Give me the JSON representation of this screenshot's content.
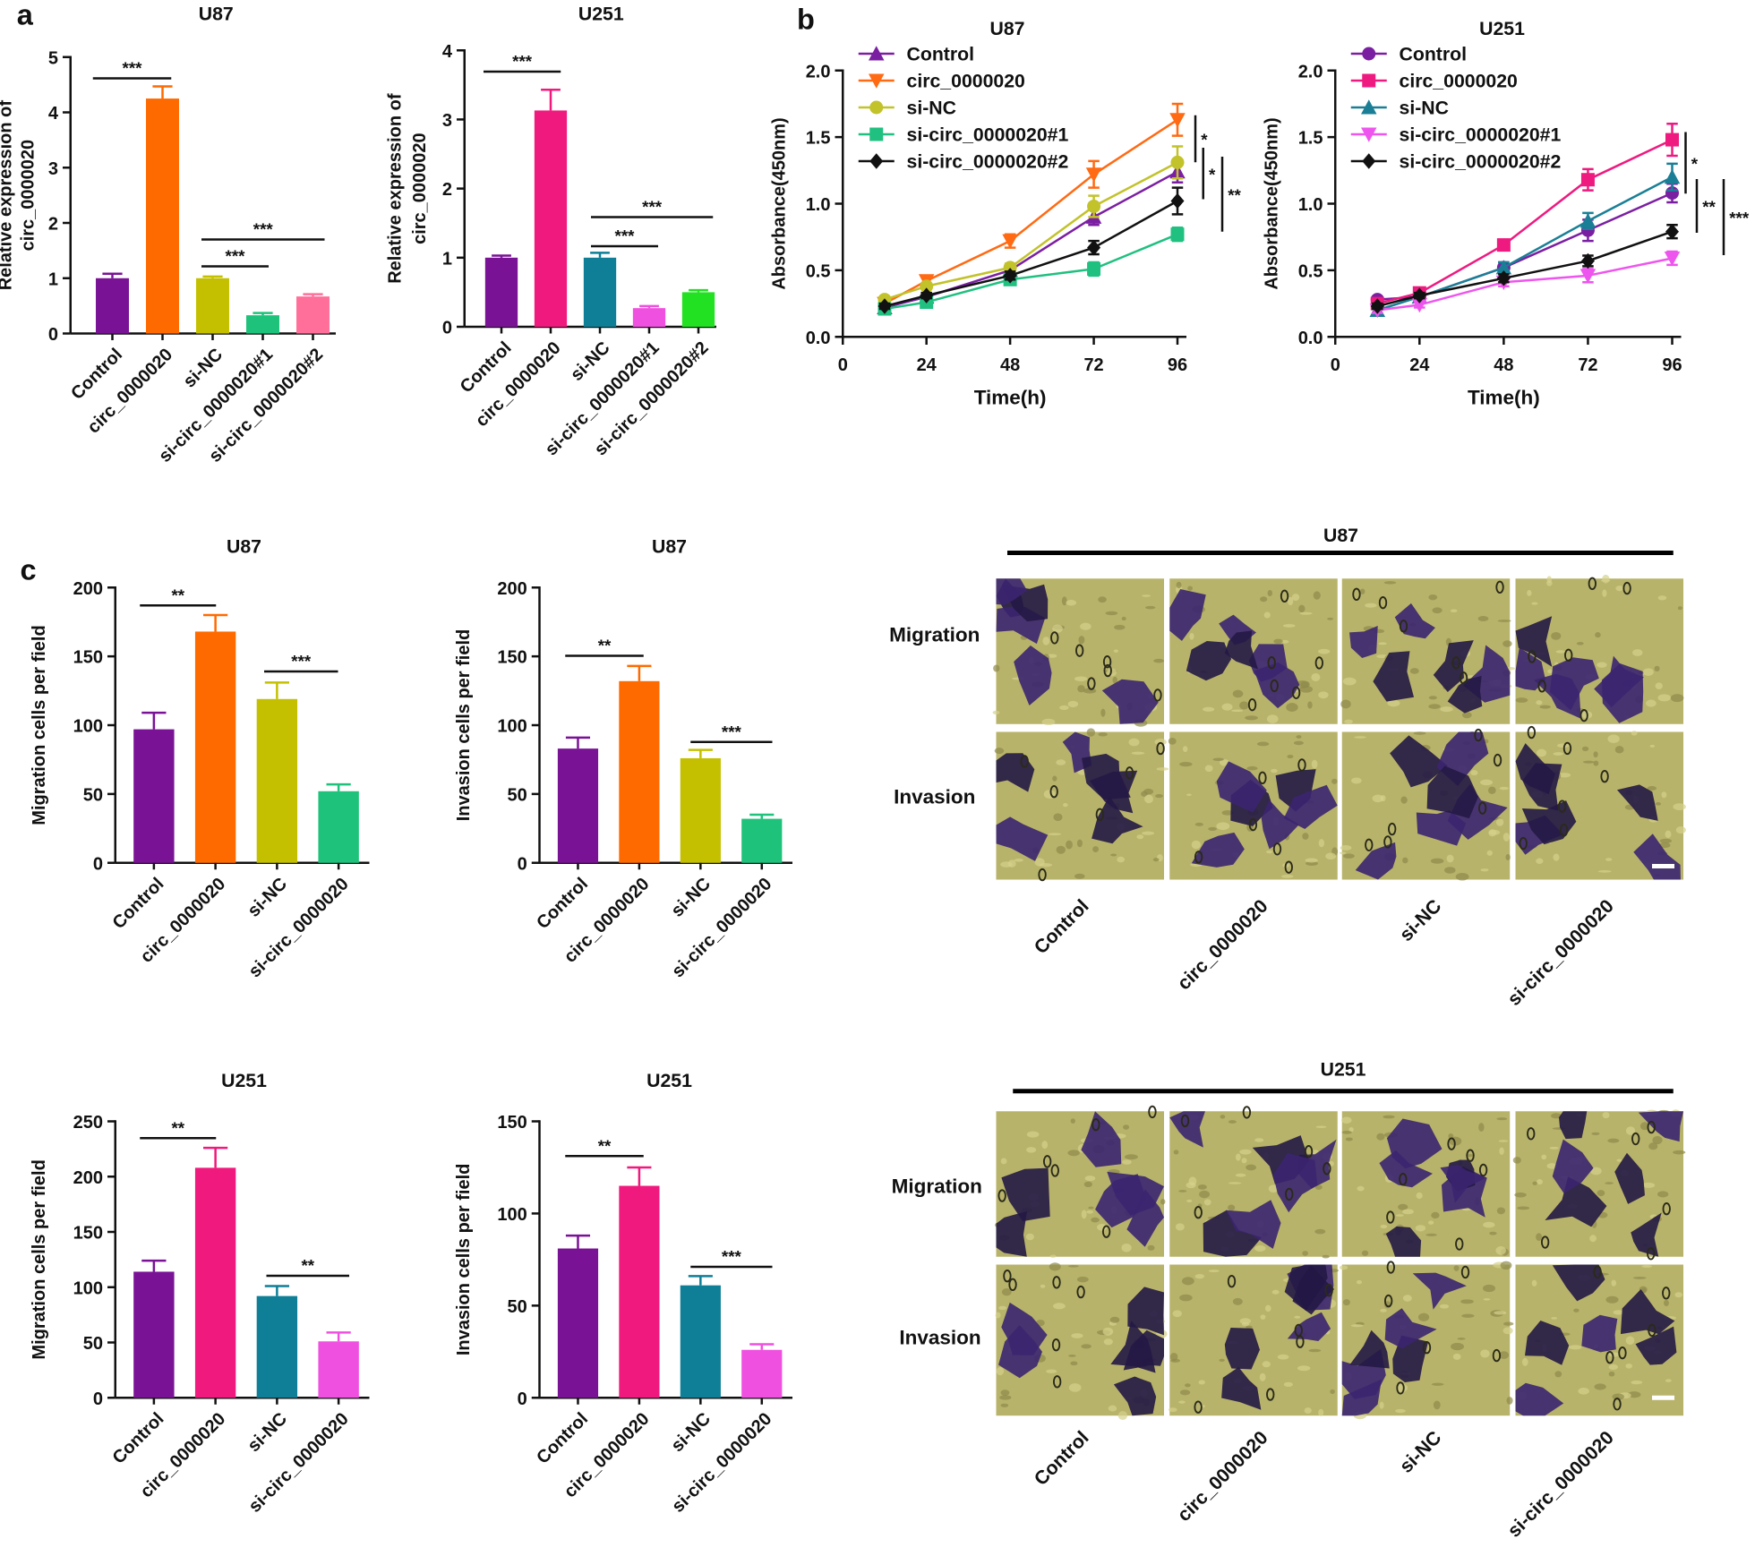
{
  "panel_labels": [
    "a",
    "b",
    "c"
  ],
  "chart_data": [
    {
      "type": "bar",
      "title": "U87",
      "ylabel": [
        "Relative expression of",
        "circ_0000020"
      ],
      "categories": [
        "Control",
        "circ_0000020",
        "si-NC",
        "si-circ_0000020#1",
        "si-circ_0000020#2"
      ],
      "values": [
        1.0,
        4.25,
        1.0,
        0.33,
        0.67
      ],
      "errors": [
        0.08,
        0.22,
        0.03,
        0.04,
        0.04
      ],
      "colors": [
        "#7a1296",
        "#ff6a00",
        "#c4c000",
        "#1ec27a",
        "#ff6f9a"
      ],
      "ylim": [
        0,
        5
      ],
      "yticks": [
        0,
        1,
        2,
        3,
        4,
        5
      ],
      "annotations": [
        "***",
        "***",
        "***"
      ]
    },
    {
      "type": "bar",
      "title": "U251",
      "ylabel": [
        "Relative expression of",
        "circ_0000020"
      ],
      "categories": [
        "Control",
        "circ_0000020",
        "si-NC",
        "si-circ_0000020#1",
        "si-circ_0000020#2"
      ],
      "values": [
        1.0,
        3.13,
        1.0,
        0.27,
        0.5
      ],
      "errors": [
        0.03,
        0.3,
        0.07,
        0.03,
        0.03
      ],
      "colors": [
        "#7a1296",
        "#f0197d",
        "#0e7f96",
        "#f050e0",
        "#22e022"
      ],
      "ylim": [
        0,
        4
      ],
      "yticks": [
        0,
        1,
        2,
        3,
        4
      ],
      "annotations": [
        "***",
        "***",
        "***"
      ]
    },
    {
      "type": "line",
      "title": "U87",
      "xlabel": "Time(h)",
      "ylabel": "Absorbance(450nm)",
      "x": [
        12,
        24,
        48,
        72,
        96
      ],
      "xlim": [
        0,
        96
      ],
      "xticks": [
        0,
        24,
        48,
        72,
        96
      ],
      "ylim": [
        0,
        2.0
      ],
      "yticks": [
        {
          "value": 0,
          "label": "0.0"
        },
        {
          "value": 0.5,
          "label": "0.5"
        },
        {
          "value": 1.0,
          "label": "1.0"
        },
        {
          "value": 1.5,
          "label": "1.5"
        },
        {
          "value": 2.0,
          "label": "2.0"
        }
      ],
      "series": [
        {
          "name": "Control",
          "color": "#7b1fa2",
          "marker": "triangle",
          "values": [
            0.22,
            0.3,
            0.5,
            0.9,
            1.24
          ],
          "errors": [
            0.02,
            0.02,
            0.03,
            0.06,
            0.08
          ]
        },
        {
          "name": "circ_0000020",
          "color": "#ff6a13",
          "marker": "triangle-down",
          "values": [
            0.25,
            0.42,
            0.72,
            1.22,
            1.63
          ],
          "errors": [
            0.02,
            0.03,
            0.05,
            0.1,
            0.12
          ]
        },
        {
          "name": "si-NC",
          "color": "#c2c22a",
          "marker": "circle",
          "values": [
            0.28,
            0.38,
            0.52,
            0.98,
            1.31
          ],
          "errors": [
            0.02,
            0.02,
            0.03,
            0.08,
            0.12
          ]
        },
        {
          "name": "si-circ_0000020#1",
          "color": "#20c080",
          "marker": "square",
          "values": [
            0.21,
            0.26,
            0.43,
            0.51,
            0.77
          ],
          "errors": [
            0.02,
            0.02,
            0.04,
            0.05,
            0.05
          ]
        },
        {
          "name": "si-circ_0000020#2",
          "color": "#111111",
          "marker": "diamond",
          "values": [
            0.23,
            0.31,
            0.46,
            0.67,
            1.02
          ],
          "errors": [
            0.02,
            0.02,
            0.03,
            0.05,
            0.1
          ]
        }
      ],
      "annotations": [
        "*",
        "*",
        "**"
      ]
    },
    {
      "type": "line",
      "title": "U251",
      "xlabel": "Time(h)",
      "ylabel": "Absorbance(450nm)",
      "x": [
        12,
        24,
        48,
        72,
        96
      ],
      "xlim": [
        0,
        96
      ],
      "xticks": [
        0,
        24,
        48,
        72,
        96
      ],
      "ylim": [
        0,
        2.0
      ],
      "yticks": [
        {
          "value": 0,
          "label": "0.0"
        },
        {
          "value": 0.5,
          "label": "0.5"
        },
        {
          "value": 1.0,
          "label": "1.0"
        },
        {
          "value": 1.5,
          "label": "1.5"
        },
        {
          "value": 2.0,
          "label": "2.0"
        }
      ],
      "series": [
        {
          "name": "Control",
          "color": "#7b1fa2",
          "marker": "circle",
          "values": [
            0.28,
            0.3,
            0.52,
            0.8,
            1.08
          ],
          "errors": [
            0.02,
            0.02,
            0.04,
            0.08,
            0.07
          ]
        },
        {
          "name": "circ_0000020",
          "color": "#ee1a80",
          "marker": "square",
          "values": [
            0.25,
            0.33,
            0.69,
            1.18,
            1.48
          ],
          "errors": [
            0.02,
            0.03,
            0.04,
            0.08,
            0.12
          ]
        },
        {
          "name": "si-NC",
          "color": "#1a7f96",
          "marker": "triangle",
          "values": [
            0.2,
            0.3,
            0.52,
            0.87,
            1.2
          ],
          "errors": [
            0.02,
            0.02,
            0.04,
            0.06,
            0.1
          ]
        },
        {
          "name": "si-circ_0000020#1",
          "color": "#ee55ee",
          "marker": "triangle-down",
          "values": [
            0.2,
            0.24,
            0.41,
            0.46,
            0.59
          ],
          "errors": [
            0.02,
            0.02,
            0.03,
            0.05,
            0.05
          ]
        },
        {
          "name": "si-circ_0000020#2",
          "color": "#111111",
          "marker": "diamond",
          "values": [
            0.23,
            0.31,
            0.44,
            0.57,
            0.79
          ],
          "errors": [
            0.02,
            0.02,
            0.03,
            0.04,
            0.05
          ]
        }
      ],
      "annotations": [
        "*",
        "**",
        "***"
      ]
    },
    {
      "type": "bar",
      "title": "U87",
      "ylabel": [
        "Migration cells per field"
      ],
      "categories": [
        "Control",
        "circ_0000020",
        "si-NC",
        "si-circ_0000020"
      ],
      "values": [
        97,
        168,
        119,
        52
      ],
      "errors": [
        12,
        12,
        12,
        5
      ],
      "colors": [
        "#7a1296",
        "#ff6a00",
        "#c4c000",
        "#1ec27a"
      ],
      "ylim": [
        0,
        200
      ],
      "yticks": [
        0,
        50,
        100,
        150,
        200
      ],
      "annotations": [
        "**",
        "***"
      ]
    },
    {
      "type": "bar",
      "title": "U87",
      "ylabel": [
        "Invasion cells per field"
      ],
      "categories": [
        "Control",
        "circ_0000020",
        "si-NC",
        "si-circ_0000020"
      ],
      "values": [
        83,
        132,
        76,
        32
      ],
      "errors": [
        8,
        11,
        6,
        3
      ],
      "colors": [
        "#7a1296",
        "#ff6a00",
        "#c4c000",
        "#1ec27a"
      ],
      "ylim": [
        0,
        200
      ],
      "yticks": [
        0,
        50,
        100,
        150,
        200
      ],
      "annotations": [
        "**",
        "***"
      ]
    },
    {
      "type": "bar",
      "title": "U251",
      "ylabel": [
        "Migration cells per field"
      ],
      "categories": [
        "Control",
        "circ_0000020",
        "si-NC",
        "si-circ_0000020"
      ],
      "values": [
        114,
        208,
        92,
        51
      ],
      "errors": [
        10,
        18,
        9,
        8
      ],
      "colors": [
        "#7a1296",
        "#f0197d",
        "#0e7f96",
        "#f050e0"
      ],
      "ylim": [
        0,
        250
      ],
      "yticks": [
        0,
        50,
        100,
        150,
        200,
        250
      ],
      "annotations": [
        "**",
        "**"
      ]
    },
    {
      "type": "bar",
      "title": "U251",
      "ylabel": [
        "Invasion cells per field"
      ],
      "categories": [
        "Control",
        "circ_0000020",
        "si-NC",
        "si-circ_0000020"
      ],
      "values": [
        81,
        115,
        61,
        26
      ],
      "errors": [
        7,
        10,
        5,
        3
      ],
      "colors": [
        "#7a1296",
        "#f0197d",
        "#0e7f96",
        "#f050e0"
      ],
      "ylim": [
        0,
        150
      ],
      "yticks": [
        0,
        50,
        100,
        150
      ],
      "annotations": [
        "**",
        "***"
      ]
    }
  ],
  "image_panels": [
    {
      "title": "U87",
      "rows": [
        "Migration",
        "Invasion"
      ],
      "columns": [
        "Control",
        "circ_0000020",
        "si-NC",
        "si-circ_0000020"
      ]
    },
    {
      "title": "U251",
      "rows": [
        "Migration",
        "Invasion"
      ],
      "columns": [
        "Control",
        "circ_0000020",
        "si-NC",
        "si-circ_0000020"
      ]
    }
  ]
}
